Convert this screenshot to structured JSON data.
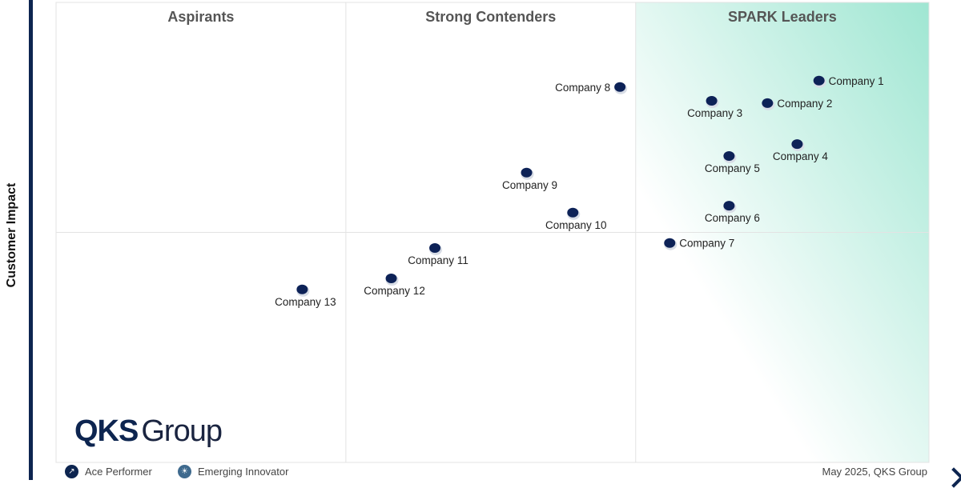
{
  "chart_data": {
    "type": "scatter",
    "ylabel": "Customer Impact",
    "xlabel": "",
    "xlim": [
      0,
      100
    ],
    "ylim": [
      0,
      100
    ],
    "quadrant_x_splits": [
      33.2,
      66.4
    ],
    "quadrant_y_split": 50,
    "quadrants": [
      "Aspirants",
      "Strong Contenders",
      "SPARK Leaders"
    ],
    "points": [
      {
        "name": "Company 1",
        "x": 87.4,
        "y": 83.0,
        "label": "right"
      },
      {
        "name": "Company 2",
        "x": 81.5,
        "y": 78.1,
        "label": "right"
      },
      {
        "name": "Company 3",
        "x": 75.1,
        "y": 78.6,
        "label": "below"
      },
      {
        "name": "Company 4",
        "x": 84.9,
        "y": 69.2,
        "label": "below"
      },
      {
        "name": "Company 5",
        "x": 77.1,
        "y": 66.6,
        "label": "below"
      },
      {
        "name": "Company 6",
        "x": 77.1,
        "y": 55.8,
        "label": "below"
      },
      {
        "name": "Company 7",
        "x": 70.3,
        "y": 47.7,
        "label": "right"
      },
      {
        "name": "Company 8",
        "x": 64.6,
        "y": 81.6,
        "label": "left"
      },
      {
        "name": "Company 9",
        "x": 53.9,
        "y": 63.0,
        "label": "below"
      },
      {
        "name": "Company 10",
        "x": 59.2,
        "y": 54.3,
        "label": "below"
      },
      {
        "name": "Company 11",
        "x": 43.4,
        "y": 46.6,
        "label": "below"
      },
      {
        "name": "Company 12",
        "x": 38.4,
        "y": 40.0,
        "label": "below"
      },
      {
        "name": "Company 13",
        "x": 28.2,
        "y": 37.6,
        "label": "below"
      }
    ],
    "legend": [
      "Ace Performer",
      "Emerging Innovator"
    ],
    "colors": {
      "point": "#0d2257",
      "leader_gradient": "#9fe6d2",
      "brand": "#0d2550"
    }
  },
  "logo": {
    "bold": "QKS",
    "rest": "Group"
  },
  "source": "May 2025, QKS Group"
}
